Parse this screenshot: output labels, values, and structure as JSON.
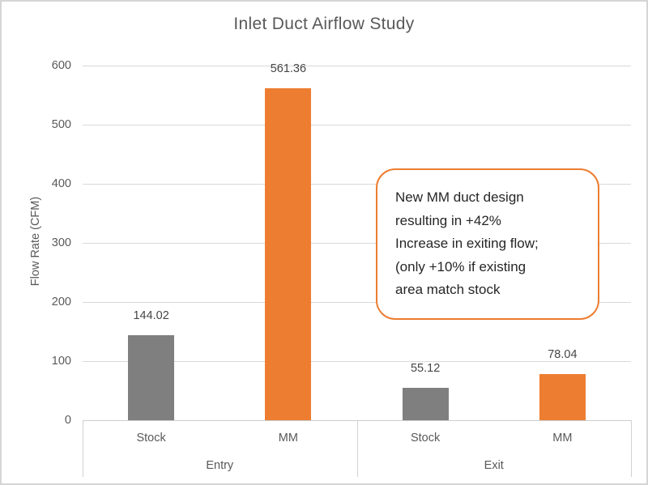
{
  "chart_data": {
    "type": "bar",
    "title": "Inlet Duct Airflow Study",
    "xlabel": "",
    "ylabel": "Flow Rate (CFM)",
    "ylim": [
      0,
      600
    ],
    "yticks": [
      0,
      100,
      200,
      300,
      400,
      500,
      600
    ],
    "grid": true,
    "legend": "none",
    "categories": [
      "Entry",
      "Exit"
    ],
    "sub_categories": [
      "Stock",
      "MM"
    ],
    "groups": [
      {
        "label": "Entry",
        "bars": [
          {
            "label": "Stock",
            "series": "Stock",
            "value": 144.02
          },
          {
            "label": "MM",
            "series": "MM",
            "value": 561.36
          }
        ]
      },
      {
        "label": "Exit",
        "bars": [
          {
            "label": "Stock",
            "series": "Stock",
            "value": 55.12
          },
          {
            "label": "MM",
            "series": "MM",
            "value": 78.04
          }
        ]
      }
    ],
    "data_label_decimals": 2,
    "series_colors": {
      "Stock": "#7f7f7f",
      "MM": "#ed7d31"
    },
    "annotation": {
      "lines": [
        "New MM duct design",
        "resulting in +42%",
        "Increase in exiting flow;",
        "(only +10% if existing",
        "area match stock"
      ],
      "border_color": "#ed7d31",
      "text_color": "#262626"
    }
  },
  "colors": {
    "accent_orange": "#ed7d31",
    "bar_gray": "#7f7f7f",
    "text_gray": "#595959",
    "gridline": "#d9d9d9",
    "frame_border": "#d5d5d5"
  }
}
